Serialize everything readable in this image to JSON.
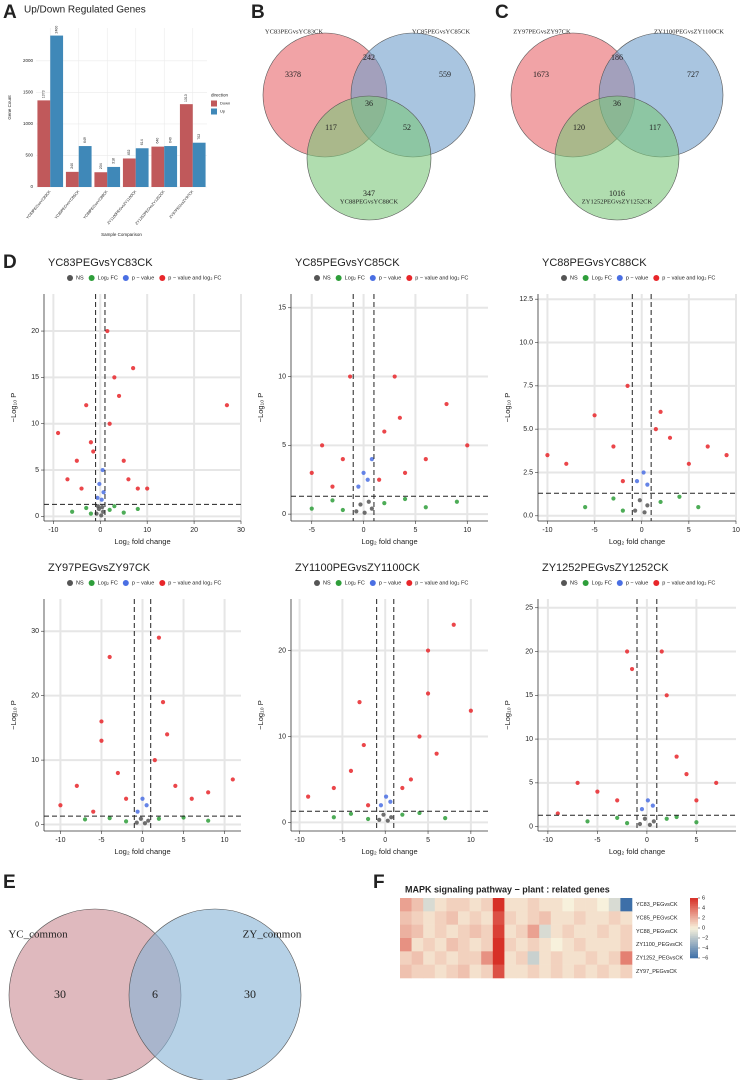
{
  "chart_data": [
    {
      "type": "bar",
      "panel": "A",
      "title": "Up/Down Regulated Genes",
      "xlabel": "Sample Comparison",
      "ylabel": "Gene Count",
      "categories": [
        "YC83PEGvsYC83CK",
        "YC85PEGvsYC85CK",
        "YC88PEGvsYC88CK",
        "ZY1100PEGvsZY1100CK",
        "ZY1252PEGvsZY1252CK",
        "ZY97PEGvsZY97CK"
      ],
      "series": [
        {
          "name": "Down",
          "color": "#c0595b",
          "values": [
            1373,
            240,
            234,
            452,
            640,
            1313
          ]
        },
        {
          "name": "Up",
          "color": "#3f88b8",
          "values": [
            2400,
            649,
            318,
            614,
            649,
            702
          ]
        }
      ],
      "legend_title": "direction",
      "ylim": [
        0,
        2520
      ],
      "yticks": [
        0,
        500,
        1000,
        1500,
        2000
      ],
      "grid": true
    },
    {
      "type": "venn",
      "panel": "B",
      "sets": [
        "YC83PEGvsYC83CK",
        "YC85PEGvsYC85CK",
        "YC88PEGvsYC88CK"
      ],
      "colors": [
        "#e8666b",
        "#6f9fcc",
        "#7cc67a"
      ],
      "regions": {
        "A": 3378,
        "AB": 242,
        "B": 559,
        "ABC": 36,
        "AC": 117,
        "BC": 52,
        "C": 347
      }
    },
    {
      "type": "venn",
      "panel": "C",
      "sets": [
        "ZY97PEGvsZY97CK",
        "ZY1100PEGvsZY1100CK",
        "ZY1252PEGvsZY1252CK"
      ],
      "colors": [
        "#e8666b",
        "#6f9fcc",
        "#7cc67a"
      ],
      "regions": {
        "A": 1673,
        "AB": 186,
        "B": 727,
        "ABC": 36,
        "AC": 120,
        "BC": 117,
        "C": 1016
      }
    },
    {
      "type": "scatter",
      "panel": "D",
      "title": "YC83PEGvsYC83CK",
      "xlabel": "Log₂ fold change",
      "ylabel": "−Log₁₀ P",
      "xlim": [
        -12,
        30
      ],
      "xticks": [
        -10,
        0,
        10,
        20,
        30
      ],
      "ylim": [
        -0.5,
        24
      ],
      "yticks": [
        0,
        5,
        10,
        15,
        20
      ],
      "cutoffs": {
        "x": [
          -1,
          1
        ],
        "y": 1.3
      },
      "grid": true,
      "series": [
        {
          "name": "NS",
          "color": "#555555",
          "x": [
            -0.8,
            -0.3,
            0.2,
            0.6,
            -0.5,
            0.4
          ],
          "y": [
            0.3,
            0.8,
            0.1,
            0.5,
            1.1,
            1.0
          ]
        },
        {
          "name": "Log₂ FC",
          "color": "#2e9e3a",
          "x": [
            -6,
            -3,
            -2,
            2,
            3,
            5,
            8
          ],
          "y": [
            0.5,
            0.9,
            0.3,
            0.7,
            1.1,
            0.4,
            0.8
          ]
        },
        {
          "name": "p − value",
          "color": "#4a6fe3",
          "x": [
            -0.6,
            -0.2,
            0.3,
            0.7,
            0.5
          ],
          "y": [
            2,
            3.5,
            1.8,
            2.6,
            5
          ]
        },
        {
          "name": "p − value and log₂ FC",
          "color": "#e8262a",
          "x": [
            -9,
            -7,
            -5,
            -3,
            -2,
            -4,
            2,
            3,
            4,
            5,
            6,
            8,
            27,
            1.5,
            -1.5,
            7,
            10
          ],
          "y": [
            9,
            4,
            6,
            12,
            8,
            3,
            10,
            15,
            13,
            6,
            4,
            3,
            12,
            20,
            7,
            16,
            3
          ]
        }
      ]
    },
    {
      "type": "scatter",
      "title": "YC85PEGvsYC85CK",
      "xlabel": "Log₂ fold change",
      "ylabel": "−Log₁₀ P",
      "xlim": [
        -7,
        12
      ],
      "xticks": [
        -5,
        0,
        5,
        10
      ],
      "ylim": [
        -0.5,
        16
      ],
      "yticks": [
        0,
        5,
        10,
        15
      ],
      "cutoffs": {
        "x": [
          -1,
          1
        ],
        "y": 1.3
      },
      "grid": true,
      "series": [
        {
          "name": "NS",
          "color": "#555555",
          "x": [
            -0.7,
            -0.3,
            0.1,
            0.5,
            0.8
          ],
          "y": [
            0.2,
            0.7,
            0.1,
            0.9,
            0.4
          ]
        },
        {
          "name": "Log₂ FC",
          "color": "#2e9e3a",
          "x": [
            -5,
            -3,
            -2,
            2,
            4,
            6,
            9
          ],
          "y": [
            0.4,
            1,
            0.3,
            0.8,
            1.1,
            0.5,
            0.9
          ]
        },
        {
          "name": "p − value",
          "color": "#4a6fe3",
          "x": [
            -0.5,
            0,
            0.4,
            0.8
          ],
          "y": [
            2,
            3,
            2.5,
            4
          ]
        },
        {
          "name": "p − value and log₂ FC",
          "color": "#e8262a",
          "x": [
            -5,
            -4,
            -3,
            -2,
            -1.3,
            2,
            3,
            4,
            6,
            8,
            10,
            1.5,
            3.5
          ],
          "y": [
            3,
            5,
            2,
            4,
            10,
            6,
            10,
            3,
            4,
            8,
            5,
            2.5,
            7
          ]
        }
      ]
    },
    {
      "type": "scatter",
      "title": "YC88PEGvsYC88CK",
      "xlabel": "Log₂ fold change",
      "ylabel": "−Log₁₀ P",
      "xlim": [
        -11,
        10
      ],
      "xticks": [
        -10,
        -5,
        0,
        5,
        10
      ],
      "ylim": [
        -0.3,
        12.8
      ],
      "yticks": [
        {
          "value": 0,
          "label": "0.0"
        },
        2.5,
        {
          "value": 5,
          "label": "5.0"
        },
        7.5,
        {
          "value": 10,
          "label": "10.0"
        },
        12.5
      ],
      "cutoffs": {
        "x": [
          -1,
          1
        ],
        "y": 1.3
      },
      "grid": true,
      "series": [
        {
          "name": "NS",
          "color": "#555555",
          "x": [
            -0.7,
            -0.2,
            0.3,
            0.6
          ],
          "y": [
            0.3,
            0.9,
            0.2,
            0.6
          ]
        },
        {
          "name": "Log₂ FC",
          "color": "#2e9e3a",
          "x": [
            -6,
            -3,
            -2,
            2,
            4,
            6
          ],
          "y": [
            0.5,
            1,
            0.3,
            0.8,
            1.1,
            0.5
          ]
        },
        {
          "name": "p − value",
          "color": "#4a6fe3",
          "x": [
            -0.5,
            0.2,
            0.6
          ],
          "y": [
            2,
            2.5,
            1.8
          ]
        },
        {
          "name": "p − value and log₂ FC",
          "color": "#e8262a",
          "x": [
            -10,
            -8,
            -5,
            -3,
            -2,
            2,
            3,
            5,
            7,
            9,
            -1.5,
            1.5
          ],
          "y": [
            3.5,
            3,
            5.8,
            4,
            2,
            6,
            4.5,
            3,
            4,
            3.5,
            7.5,
            5
          ]
        }
      ]
    },
    {
      "type": "scatter",
      "title": "ZY97PEGvsZY97CK",
      "xlabel": "Log₂ fold change",
      "ylabel": "−Log₁₀ P",
      "xlim": [
        -12,
        12
      ],
      "xticks": [
        -10,
        -5,
        0,
        5,
        10
      ],
      "ylim": [
        -1,
        35
      ],
      "yticks": [
        0,
        10,
        20,
        30
      ],
      "cutoffs": {
        "x": [
          -1,
          1
        ],
        "y": 1.3
      },
      "grid": true,
      "series": [
        {
          "name": "NS",
          "color": "#555555",
          "x": [
            -0.7,
            -0.2,
            0.3,
            0.7
          ],
          "y": [
            0.3,
            0.9,
            0.2,
            0.6
          ]
        },
        {
          "name": "Log₂ FC",
          "color": "#2e9e3a",
          "x": [
            -7,
            -4,
            -2,
            2,
            5,
            8
          ],
          "y": [
            0.8,
            1,
            0.5,
            0.9,
            1.1,
            0.6
          ]
        },
        {
          "name": "p − value",
          "color": "#4a6fe3",
          "x": [
            -0.6,
            0,
            0.5
          ],
          "y": [
            2,
            4,
            3
          ]
        },
        {
          "name": "p − value and log₂ FC",
          "color": "#e8262a",
          "x": [
            -10,
            -8,
            -6,
            -5,
            -4,
            -3,
            -2,
            2,
            2.5,
            3,
            4,
            6,
            8,
            11,
            -5,
            1.5
          ],
          "y": [
            3,
            6,
            2,
            13,
            26,
            8,
            4,
            29,
            19,
            14,
            6,
            4,
            5,
            7,
            16,
            10
          ]
        }
      ]
    },
    {
      "type": "scatter",
      "title": "ZY1100PEGvsZY1100CK",
      "xlabel": "Log₂ fold change",
      "ylabel": "−Log₁₀ P",
      "xlim": [
        -11,
        12
      ],
      "xticks": [
        -10,
        -5,
        0,
        5,
        10
      ],
      "ylim": [
        -1,
        26
      ],
      "yticks": [
        0,
        10,
        20
      ],
      "cutoffs": {
        "x": [
          -1,
          1
        ],
        "y": 1.3
      },
      "grid": true,
      "series": [
        {
          "name": "NS",
          "color": "#555555",
          "x": [
            -0.7,
            -0.2,
            0.3,
            0.7
          ],
          "y": [
            0.3,
            0.9,
            0.2,
            0.6
          ]
        },
        {
          "name": "Log₂ FC",
          "color": "#2e9e3a",
          "x": [
            -6,
            -4,
            -2,
            2,
            4,
            7
          ],
          "y": [
            0.6,
            1,
            0.4,
            0.9,
            1.1,
            0.5
          ]
        },
        {
          "name": "p − value",
          "color": "#4a6fe3",
          "x": [
            -0.5,
            0.1,
            0.6
          ],
          "y": [
            2,
            3,
            2.4
          ]
        },
        {
          "name": "p − value and log₂ FC",
          "color": "#e8262a",
          "x": [
            -9,
            -6,
            -4,
            -3,
            -2,
            2,
            3,
            4,
            5,
            6,
            8,
            10,
            -2.5,
            5
          ],
          "y": [
            3,
            4,
            6,
            14,
            2,
            4,
            5,
            10,
            20,
            8,
            23,
            13,
            9,
            15
          ]
        }
      ]
    },
    {
      "type": "scatter",
      "title": "ZY1252PEGvsZY1252CK",
      "xlabel": "Log₂ fold change",
      "ylabel": "−Log₁₀ P",
      "xlim": [
        -11,
        9
      ],
      "xticks": [
        -10,
        -5,
        0,
        5
      ],
      "ylim": [
        -0.5,
        26
      ],
      "yticks": [
        0,
        5,
        10,
        15,
        20,
        25
      ],
      "cutoffs": {
        "x": [
          -1,
          1
        ],
        "y": 1.3
      },
      "grid": true,
      "series": [
        {
          "name": "NS",
          "color": "#555555",
          "x": [
            -0.7,
            -0.2,
            0.3,
            0.7
          ],
          "y": [
            0.3,
            0.9,
            0.2,
            0.6
          ]
        },
        {
          "name": "Log₂ FC",
          "color": "#2e9e3a",
          "x": [
            -6,
            -3,
            -2,
            2,
            3,
            5
          ],
          "y": [
            0.6,
            1,
            0.4,
            0.9,
            1.1,
            0.5
          ]
        },
        {
          "name": "p − value",
          "color": "#4a6fe3",
          "x": [
            -0.5,
            0.1,
            0.6
          ],
          "y": [
            2,
            3,
            2.4
          ]
        },
        {
          "name": "p − value and log₂ FC",
          "color": "#e8262a",
          "x": [
            -9,
            -7,
            -5,
            -3,
            -2,
            -1.5,
            1.5,
            2,
            3,
            4,
            5,
            7
          ],
          "y": [
            1.5,
            5,
            4,
            3,
            20,
            18,
            20,
            15,
            8,
            6,
            3,
            5
          ]
        }
      ]
    },
    {
      "type": "venn",
      "panel": "E",
      "sets": [
        "YC_common",
        "ZY_common"
      ],
      "colors": [
        "#c98a93",
        "#86b2d6"
      ],
      "regions": {
        "A": 30,
        "AB": 6,
        "B": 30
      }
    },
    {
      "type": "heatmap",
      "panel": "F",
      "title": "MAPK signaling pathway − plant : related genes",
      "rows": [
        "YC83_PEGvsCK",
        "YC85_PEGvsCK",
        "YC88_PEGvsCK",
        "ZY1100_PEGvsCK",
        "ZY1252_PEGvsCK",
        "ZY97_PEGvsCK"
      ],
      "categories": [
        null,
        null,
        null,
        null,
        null,
        null,
        null,
        null,
        null,
        null,
        null,
        null,
        null,
        null,
        null,
        null,
        null,
        null,
        null,
        null
      ],
      "values": [
        [
          2.5,
          1.5,
          -1,
          0.5,
          1,
          1,
          0.5,
          1,
          6,
          0.5,
          0.5,
          1,
          0.5,
          0.5,
          0,
          0.5,
          0.5,
          0,
          -1,
          -6
        ],
        [
          1.5,
          1,
          0.5,
          1,
          1.5,
          0.5,
          1,
          0.5,
          5,
          1,
          0.5,
          1,
          1.5,
          0.5,
          0.5,
          1,
          0.5,
          0.5,
          1,
          0.5
        ],
        [
          2,
          1.5,
          0.5,
          1,
          0.5,
          1,
          1.5,
          1,
          5.5,
          0.5,
          1,
          2.5,
          -1,
          0.5,
          1,
          0.5,
          0.5,
          1,
          0.5,
          1
        ],
        [
          3,
          0.5,
          1,
          0.5,
          1.5,
          1,
          0.5,
          1,
          6,
          1,
          0.5,
          1,
          0.5,
          0,
          0.5,
          1,
          0.5,
          0.5,
          0.5,
          1
        ],
        [
          1,
          1.5,
          0.5,
          1,
          0.5,
          1,
          1,
          3,
          6,
          0.5,
          1,
          -1.5,
          0.5,
          1,
          0.5,
          0.5,
          1,
          0.5,
          1,
          3.5
        ],
        [
          1.5,
          1,
          1,
          0.5,
          1,
          1.5,
          0.5,
          1,
          5,
          0.5,
          0.5,
          1,
          0.5,
          1,
          0.5,
          1,
          0.5,
          1,
          0.5,
          1
        ]
      ],
      "clim": [
        -6,
        6
      ],
      "colors": [
        "#3d6fa8",
        "#f7f1dc",
        "#d73027"
      ],
      "colorbar_ticks": [
        6,
        4,
        2,
        0,
        {
          "value": -2,
          "label": "−2"
        },
        {
          "value": -4,
          "label": "−4"
        },
        {
          "value": -6,
          "label": "−6"
        }
      ]
    }
  ]
}
